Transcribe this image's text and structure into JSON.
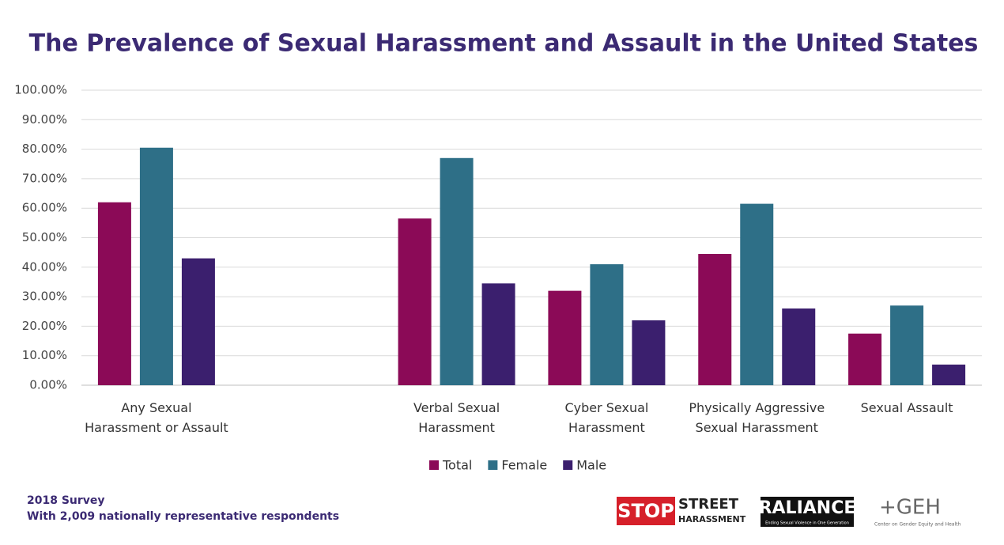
{
  "chart_data": {
    "type": "bar",
    "title": "The Prevalence of Sexual Harassment and Assault in the United States",
    "categories": [
      "Any Sexual\nHarassment or Assault",
      null,
      "Verbal Sexual\nHarassment",
      "Cyber Sexual\nHarassment",
      "Physically Aggressive\nSexual Harassment",
      "Sexual Assault"
    ],
    "series": [
      {
        "name": "Total",
        "color": "#8b0a57",
        "values": [
          62,
          null,
          56.5,
          32,
          44.5,
          17.5
        ]
      },
      {
        "name": "Female",
        "color": "#2e6f87",
        "values": [
          80.5,
          null,
          77,
          41,
          61.5,
          27
        ]
      },
      {
        "name": "Male",
        "color": "#3b1f6e",
        "values": [
          43,
          null,
          34.5,
          22,
          26,
          7
        ]
      }
    ],
    "ylim": [
      0,
      100
    ],
    "yticks": [
      {
        "value": 0,
        "label": "0.00%"
      },
      {
        "value": 10,
        "label": "10.00%"
      },
      {
        "value": 20,
        "label": "20.00%"
      },
      {
        "value": 30,
        "label": "30.00%"
      },
      {
        "value": 40,
        "label": "40.00%"
      },
      {
        "value": 50,
        "label": "50.00%"
      },
      {
        "value": 60,
        "label": "60.00%"
      },
      {
        "value": 70,
        "label": "70.00%"
      },
      {
        "value": 80,
        "label": "80.00%"
      },
      {
        "value": 90,
        "label": "90.00%"
      },
      {
        "value": 100,
        "label": "100.00%"
      }
    ],
    "grid": true,
    "legend": "bottom",
    "footnotes": [
      "2018 Survey",
      "With 2,009 nationally representative respondents"
    ]
  },
  "logos": {
    "stop": "STOP",
    "street": "STREET",
    "harassment": "HARASSMENT",
    "raliance": "RALIANCE",
    "raliance_tag": "Ending Sexual Violence in One Generation",
    "geh": "+GEH",
    "geh_tag": "Center on Gender Equity and Health"
  }
}
